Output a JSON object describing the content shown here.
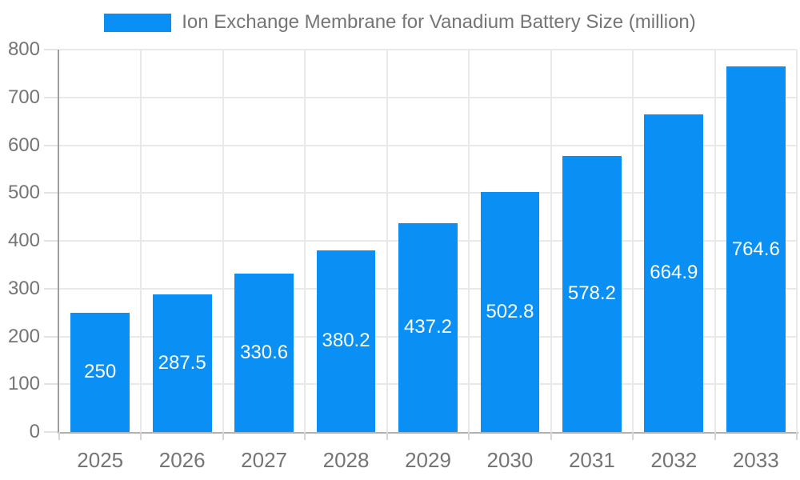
{
  "legend": {
    "label": "Ion Exchange Membrane for Vanadium Battery Size (million)",
    "swatch_color": "#0a90f5"
  },
  "chart_data": {
    "type": "bar",
    "title": "Ion Exchange Membrane for Vanadium Battery Size (million)",
    "categories": [
      "2025",
      "2026",
      "2027",
      "2028",
      "2029",
      "2030",
      "2031",
      "2032",
      "2033"
    ],
    "values": [
      250,
      287.5,
      330.6,
      380.2,
      437.2,
      502.8,
      578.2,
      664.9,
      764.6
    ],
    "value_labels": [
      "250",
      "287.5",
      "330.6",
      "380.2",
      "437.2",
      "502.8",
      "578.2",
      "664.9",
      "764.6"
    ],
    "xlabel": "",
    "ylabel": "",
    "ylim": [
      0,
      800
    ],
    "ytick_step": 100,
    "ytick_labels": [
      "0",
      "100",
      "200",
      "300",
      "400",
      "500",
      "600",
      "700",
      "800"
    ],
    "grid": true,
    "legend_position": "top",
    "bar_color": "#0a90f5",
    "value_label_color": "#ffffff",
    "grid_color": "#e9e9e9",
    "axis_color": "#9e9e9e",
    "tick_label_color": "#757575"
  }
}
